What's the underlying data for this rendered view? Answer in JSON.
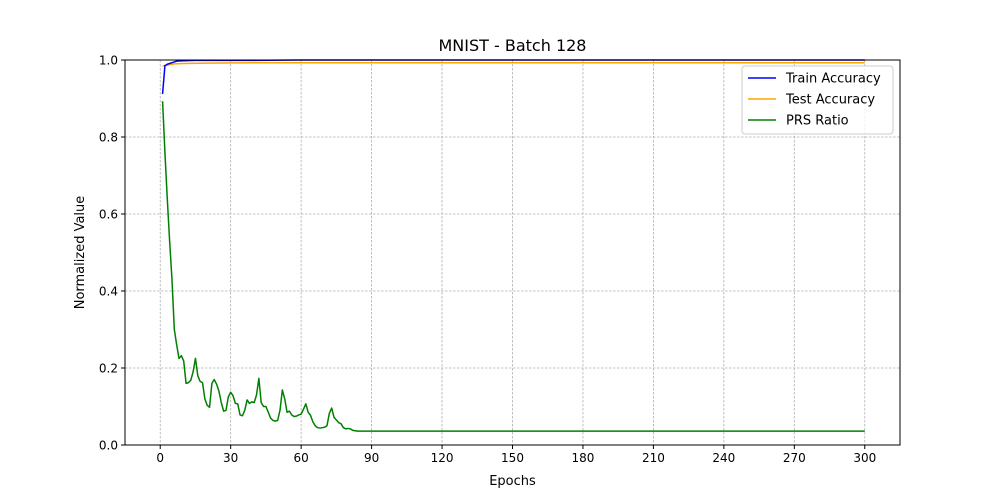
{
  "chart_data": {
    "type": "line",
    "title": "MNIST - Batch 128",
    "xlabel": "Epochs",
    "ylabel": "Normalized Value",
    "xlim": [
      -15.0,
      315.0
    ],
    "ylim": [
      0.0,
      1.0
    ],
    "xticks": [
      0,
      30,
      60,
      90,
      120,
      150,
      180,
      210,
      240,
      270,
      300
    ],
    "yticks": [
      0.0,
      0.2,
      0.4,
      0.6,
      0.8,
      1.0
    ],
    "xtick_labels": [
      "0",
      "30",
      "60",
      "90",
      "120",
      "150",
      "180",
      "210",
      "240",
      "270",
      "300"
    ],
    "ytick_labels": [
      "0.0",
      "0.2",
      "0.4",
      "0.6",
      "0.8",
      "1.0"
    ],
    "grid": true,
    "legend_position": "upper right",
    "series": [
      {
        "name": "Train Accuracy",
        "color": "#0000ff",
        "points": [
          [
            1,
            0.912
          ],
          [
            2,
            0.985
          ],
          [
            3,
            0.989
          ],
          [
            5,
            0.993
          ],
          [
            7,
            0.997
          ],
          [
            10,
            0.998
          ],
          [
            15,
            0.999
          ],
          [
            25,
            0.999
          ],
          [
            40,
            0.999
          ],
          [
            60,
            1.0
          ],
          [
            80,
            1.0
          ],
          [
            120,
            1.0
          ],
          [
            200,
            1.0
          ],
          [
            300,
            1.0
          ]
        ]
      },
      {
        "name": "Test Accuracy",
        "color": "#ffa500",
        "points": [
          [
            1,
            0.984
          ],
          [
            2,
            0.986
          ],
          [
            4,
            0.988
          ],
          [
            6,
            0.99
          ],
          [
            10,
            0.991
          ],
          [
            20,
            0.992
          ],
          [
            40,
            0.993
          ],
          [
            80,
            0.993
          ],
          [
            150,
            0.993
          ],
          [
            300,
            0.993
          ]
        ]
      },
      {
        "name": "PRS Ratio",
        "color": "#008000",
        "points": [
          [
            1,
            0.893
          ],
          [
            2,
            0.76
          ],
          [
            3,
            0.64
          ],
          [
            4,
            0.53
          ],
          [
            5,
            0.43
          ],
          [
            6,
            0.3
          ],
          [
            7,
            0.26
          ],
          [
            8,
            0.225
          ],
          [
            9,
            0.232
          ],
          [
            10,
            0.218
          ],
          [
            11,
            0.16
          ],
          [
            12,
            0.162
          ],
          [
            13,
            0.168
          ],
          [
            14,
            0.19
          ],
          [
            15,
            0.225
          ],
          [
            16,
            0.18
          ],
          [
            17,
            0.165
          ],
          [
            18,
            0.162
          ],
          [
            19,
            0.12
          ],
          [
            20,
            0.103
          ],
          [
            21,
            0.098
          ],
          [
            22,
            0.16
          ],
          [
            23,
            0.17
          ],
          [
            24,
            0.158
          ],
          [
            25,
            0.14
          ],
          [
            26,
            0.11
          ],
          [
            27,
            0.088
          ],
          [
            28,
            0.09
          ],
          [
            29,
            0.125
          ],
          [
            30,
            0.137
          ],
          [
            31,
            0.128
          ],
          [
            32,
            0.108
          ],
          [
            33,
            0.107
          ],
          [
            34,
            0.078
          ],
          [
            35,
            0.076
          ],
          [
            36,
            0.09
          ],
          [
            37,
            0.117
          ],
          [
            38,
            0.108
          ],
          [
            39,
            0.112
          ],
          [
            40,
            0.11
          ],
          [
            41,
            0.13
          ],
          [
            42,
            0.173
          ],
          [
            43,
            0.11
          ],
          [
            44,
            0.1
          ],
          [
            45,
            0.1
          ],
          [
            46,
            0.085
          ],
          [
            47,
            0.07
          ],
          [
            48,
            0.064
          ],
          [
            49,
            0.062
          ],
          [
            50,
            0.064
          ],
          [
            51,
            0.09
          ],
          [
            52,
            0.143
          ],
          [
            53,
            0.12
          ],
          [
            54,
            0.085
          ],
          [
            55,
            0.088
          ],
          [
            56,
            0.078
          ],
          [
            57,
            0.074
          ],
          [
            58,
            0.075
          ],
          [
            59,
            0.078
          ],
          [
            60,
            0.08
          ],
          [
            61,
            0.093
          ],
          [
            62,
            0.107
          ],
          [
            63,
            0.085
          ],
          [
            64,
            0.077
          ],
          [
            65,
            0.06
          ],
          [
            66,
            0.05
          ],
          [
            67,
            0.045
          ],
          [
            68,
            0.044
          ],
          [
            69,
            0.045
          ],
          [
            70,
            0.046
          ],
          [
            71,
            0.05
          ],
          [
            72,
            0.082
          ],
          [
            73,
            0.096
          ],
          [
            74,
            0.072
          ],
          [
            75,
            0.065
          ],
          [
            76,
            0.058
          ],
          [
            77,
            0.055
          ],
          [
            78,
            0.045
          ],
          [
            79,
            0.042
          ],
          [
            80,
            0.043
          ],
          [
            81,
            0.042
          ],
          [
            82,
            0.038
          ],
          [
            84,
            0.036
          ],
          [
            90,
            0.036
          ],
          [
            150,
            0.036
          ],
          [
            300,
            0.036
          ]
        ]
      }
    ]
  }
}
